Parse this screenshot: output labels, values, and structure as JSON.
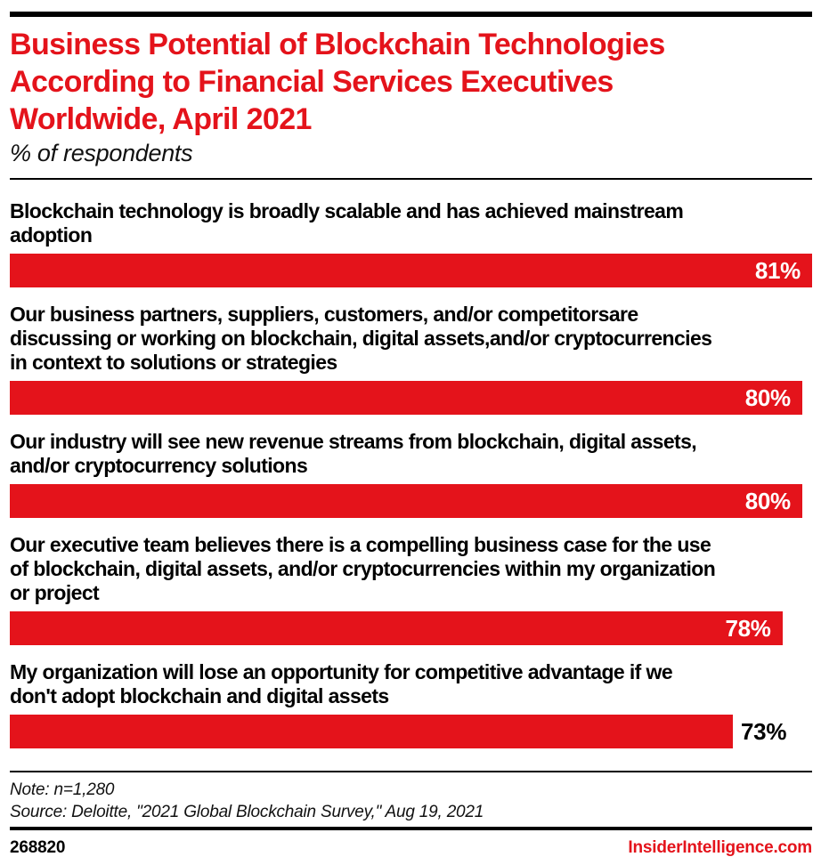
{
  "page": {
    "background": "#ffffff",
    "accent_color": "#e4131b"
  },
  "header": {
    "title_lines": [
      "Business Potential of Blockchain Technologies",
      "According to Financial Services Executives",
      "Worldwide, April 2021"
    ],
    "subtitle": "% of respondents"
  },
  "chart_data": {
    "type": "bar",
    "orientation": "horizontal",
    "unit": "%",
    "title": "Business Potential of Blockchain Technologies According to Financial Services Executives Worldwide, April 2021",
    "subtitle": "% of respondents",
    "axis_max": 81,
    "grid": false,
    "legend": false,
    "bar_color": "#e4131b",
    "categories": [
      "Blockchain technology is broadly scalable and has achieved mainstream adoption",
      "Our business partners, suppliers, customers, and/or competitorsare discussing or working on blockchain, digital assets,and/or cryptocurrencies in context to solutions or strategies",
      "Our industry will see new revenue streams from blockchain, digital assets, and/or cryptocurrency solutions",
      "Our executive team believes there is a compelling business case for the use of blockchain, digital assets, and/or cryptocurrencies within my organization or project",
      "My organization will lose an opportunity for competitive advantage if we don't adopt blockchain and digital assets"
    ],
    "label_lines": [
      [
        "Blockchain technology is broadly scalable and has achieved mainstream",
        "adoption"
      ],
      [
        "Our business partners, suppliers, customers, and/or competitorsare",
        "discussing or working on blockchain, digital assets,and/or cryptocurrencies",
        "in context to solutions or strategies"
      ],
      [
        "Our industry will see new revenue streams from blockchain, digital assets,",
        "and/or cryptocurrency solutions"
      ],
      [
        "Our executive team believes there is a compelling business case for the use",
        "of blockchain, digital assets, and/or cryptocurrencies within my organization",
        "or project"
      ],
      [
        "My organization will lose an opportunity for competitive advantage if we",
        "don't adopt blockchain and digital assets"
      ]
    ],
    "values": [
      81,
      80,
      80,
      78,
      73
    ],
    "value_labels": [
      "81%",
      "80%",
      "80%",
      "78%",
      "73%"
    ],
    "value_label_position": [
      "inside",
      "inside",
      "inside",
      "inside",
      "outside"
    ]
  },
  "footer": {
    "note": "Note: n=1,280",
    "source": "Source: Deloitte, \"2021 Global Blockchain Survey,\" Aug 19, 2021",
    "chart_id": "268820",
    "brand": "InsiderIntelligence.com"
  }
}
